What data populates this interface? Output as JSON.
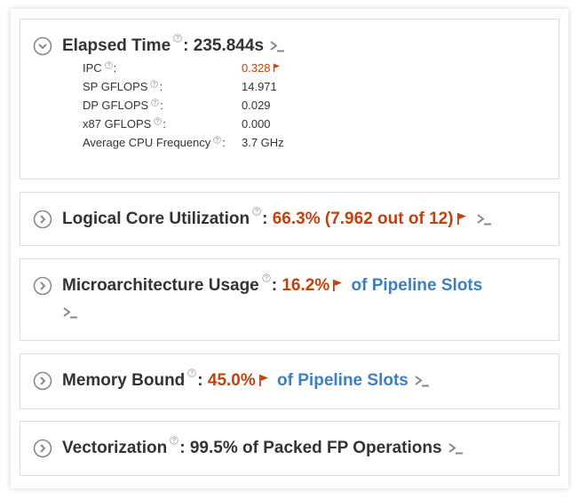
{
  "sections": [
    {
      "label": "Elapsed Time",
      "separator": ":",
      "value": "235.844s",
      "metrics": [
        {
          "label": "IPC",
          "separator": ":",
          "value": "0.328"
        },
        {
          "label": "SP GFLOPS",
          "separator": ":",
          "value": "14.971"
        },
        {
          "label": "DP GFLOPS",
          "separator": ":",
          "value": "0.029"
        },
        {
          "label": "x87 GFLOPS",
          "separator": ":",
          "value": "0.000"
        },
        {
          "label": "Average CPU Frequency",
          "separator": ":",
          "value": "3.7 GHz"
        }
      ]
    },
    {
      "label": "Logical Core Utilization",
      "separator": ":",
      "value": "66.3% (7.962 out of 12)"
    },
    {
      "label": "Microarchitecture Usage",
      "separator": ":",
      "value": "16.2%",
      "suffix": "of Pipeline Slots"
    },
    {
      "label": "Memory Bound",
      "separator": ":",
      "value": "45.0%",
      "suffix": "of Pipeline Slots"
    },
    {
      "label": "Vectorization",
      "separator": ":",
      "value": "99.5% of Packed FP Operations"
    }
  ]
}
